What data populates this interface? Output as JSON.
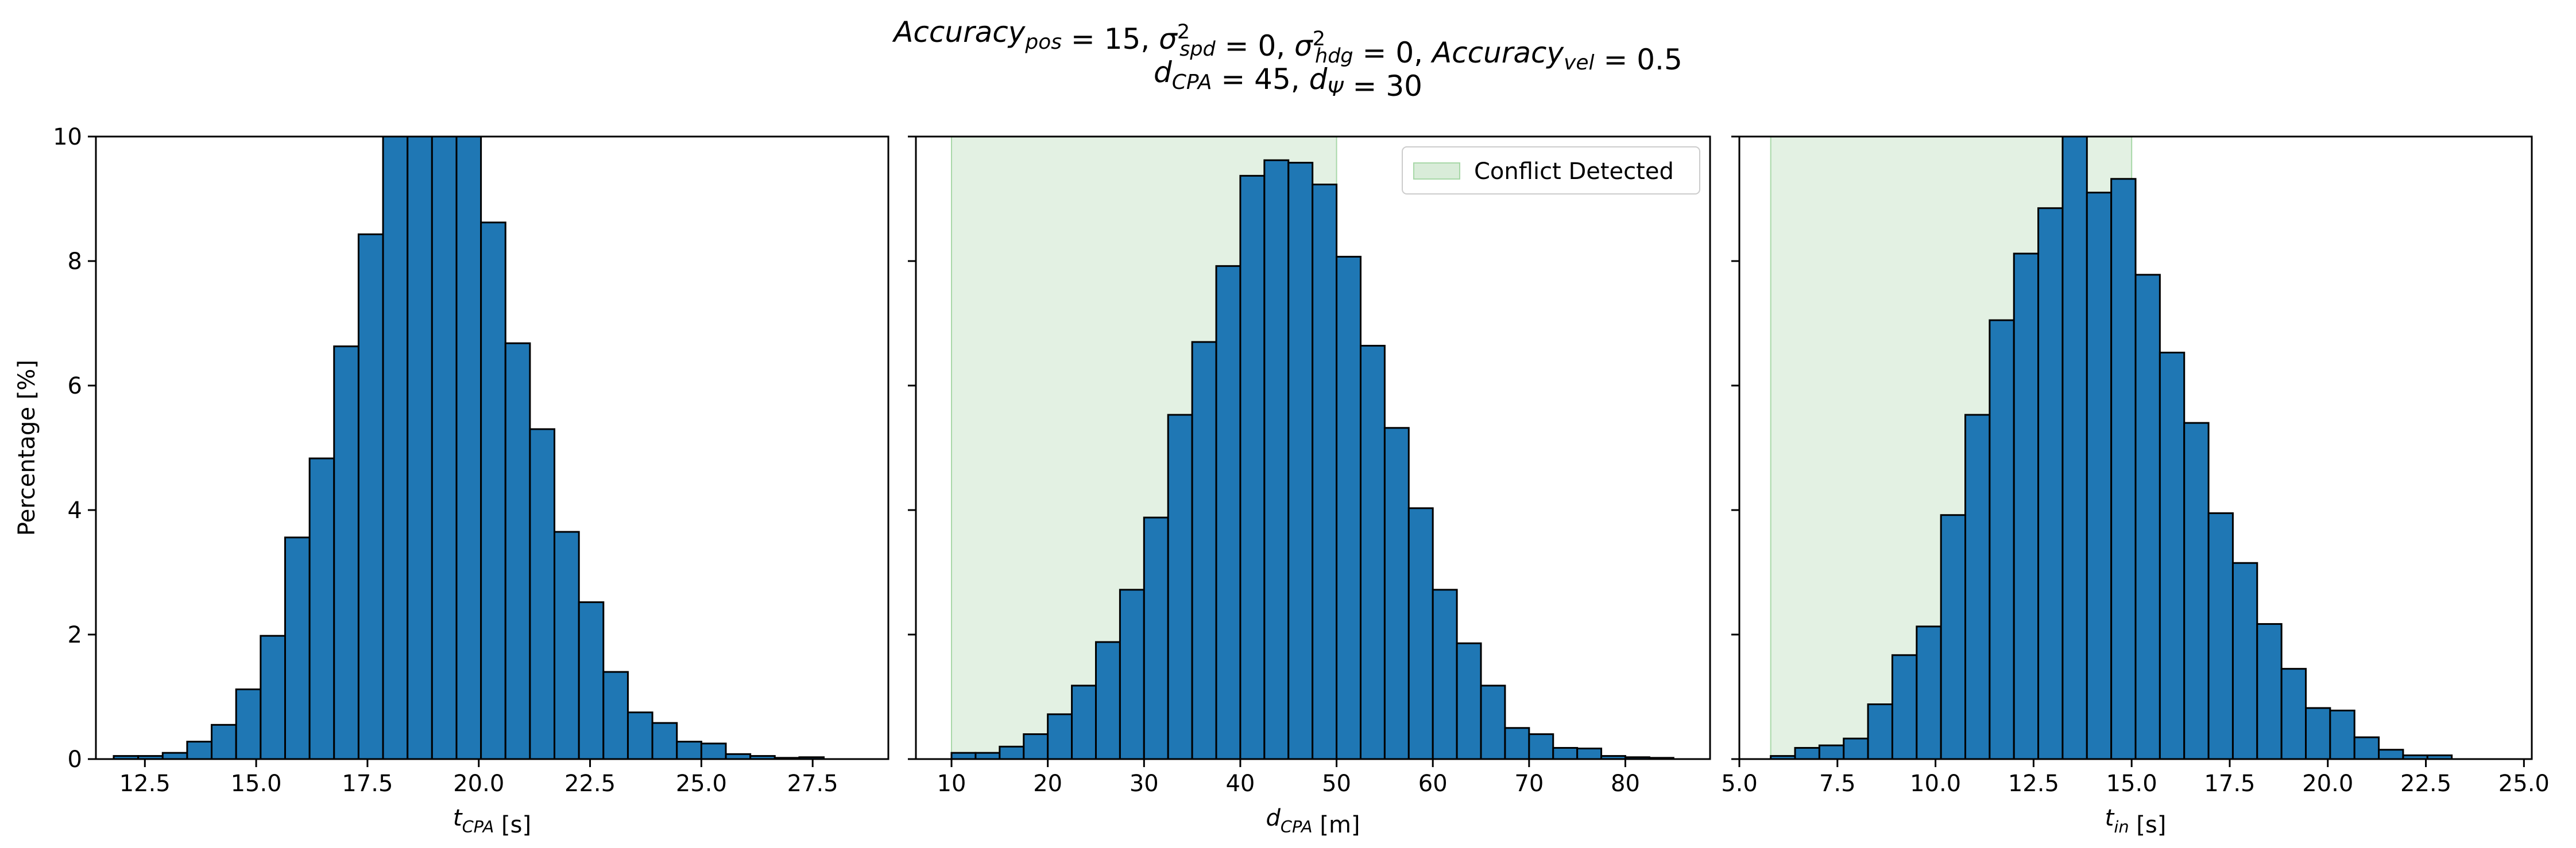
{
  "figure": {
    "title_line1": "Accuracy_pos = 15, σ²_spd = 0, σ²_hdg = 0, Accuracy_vel = 0.5",
    "title_line2": "d_CPA = 45, d_Ψ = 30"
  },
  "colors": {
    "bar_fill": "#1f77b4",
    "bar_edge": "#000000",
    "region_fill": "#d9ecd9",
    "region_edge": "#a8d8a8"
  },
  "chart_data": [
    {
      "type": "bar",
      "subtype": "histogram",
      "xlabel": "t_CPA [s]",
      "ylabel": "Percentage [%]",
      "xlim": [
        11.4,
        29.2
      ],
      "ylim": [
        0,
        10
      ],
      "xticks": [
        12.5,
        15.0,
        17.5,
        20.0,
        22.5,
        25.0,
        27.5
      ],
      "xtick_labels": [
        "12.5",
        "15.0",
        "17.5",
        "20.0",
        "22.5",
        "25.0",
        "27.5"
      ],
      "yticks": [
        0,
        2,
        4,
        6,
        8,
        10
      ],
      "ytick_labels": [
        "0",
        "2",
        "4",
        "6",
        "8",
        "10"
      ],
      "bin_edges": [
        11.8,
        12.35,
        12.9,
        13.45,
        14.0,
        14.55,
        15.1,
        15.65,
        16.2,
        16.75,
        17.3,
        17.85,
        18.4,
        18.95,
        19.5,
        20.05,
        20.6,
        21.15,
        21.7,
        22.25,
        22.8,
        23.35,
        23.9,
        24.45,
        25.0,
        25.55,
        26.1,
        26.65,
        27.2,
        27.75,
        28.3
      ],
      "values": [
        0.05,
        0.05,
        0.1,
        0.28,
        0.55,
        1.12,
        1.98,
        3.56,
        4.83,
        6.63,
        8.43,
        10.0,
        10.0,
        10.0,
        10.0,
        8.62,
        6.68,
        5.3,
        3.65,
        2.52,
        1.4,
        0.75,
        0.58,
        0.28,
        0.25,
        0.08,
        0.05,
        0.02,
        0.03,
        0.0
      ]
    },
    {
      "type": "bar",
      "subtype": "histogram",
      "xlabel": "d_CPA [m]",
      "ylabel": "",
      "xlim": [
        6.3,
        88.8
      ],
      "ylim": [
        0,
        10
      ],
      "xticks": [
        10,
        20,
        30,
        40,
        50,
        60,
        70,
        80
      ],
      "xtick_labels": [
        "10",
        "20",
        "30",
        "40",
        "50",
        "60",
        "70",
        "80"
      ],
      "yticks": [
        0,
        2,
        4,
        6,
        8,
        10
      ],
      "ytick_labels": [
        "",
        "",
        "",
        "",
        "",
        ""
      ],
      "bin_edges": [
        10.0,
        12.5,
        15.0,
        17.5,
        20.0,
        22.5,
        25.0,
        27.5,
        30.0,
        32.5,
        35.0,
        37.5,
        40.0,
        42.5,
        45.0,
        47.5,
        50.0,
        52.5,
        55.0,
        57.5,
        60.0,
        62.5,
        65.0,
        67.5,
        70.0,
        72.5,
        75.0,
        77.5,
        80.0,
        82.5,
        85.0
      ],
      "values": [
        0.1,
        0.1,
        0.2,
        0.4,
        0.72,
        1.18,
        1.88,
        2.72,
        3.88,
        5.53,
        6.7,
        7.92,
        9.37,
        9.62,
        9.58,
        9.23,
        8.07,
        6.64,
        5.32,
        4.03,
        2.72,
        1.86,
        1.18,
        0.5,
        0.4,
        0.18,
        0.17,
        0.05,
        0.03,
        0.02
      ],
      "shaded_region": {
        "x": [
          10,
          50
        ],
        "label": "Conflict Detected"
      },
      "legend": {
        "entries": [
          "Conflict Detected"
        ],
        "placement": "top-right"
      }
    },
    {
      "type": "bar",
      "subtype": "histogram",
      "xlabel": "t_in [s]",
      "ylabel": "",
      "xlim": [
        5.0,
        25.2
      ],
      "ylim": [
        0,
        10
      ],
      "xticks": [
        5.0,
        7.5,
        10.0,
        12.5,
        15.0,
        17.5,
        20.0,
        22.5,
        25.0
      ],
      "xtick_labels": [
        "5.0",
        "7.5",
        "10.0",
        "12.5",
        "15.0",
        "17.5",
        "20.0",
        "22.5",
        "25.0"
      ],
      "yticks": [
        0,
        2,
        4,
        6,
        8,
        10
      ],
      "ytick_labels": [
        "",
        "",
        "",
        "",
        "",
        ""
      ],
      "bin_edges": [
        5.8,
        6.42,
        7.04,
        7.66,
        8.28,
        8.9,
        9.52,
        10.14,
        10.76,
        11.38,
        12.0,
        12.62,
        13.24,
        13.86,
        14.48,
        15.1,
        15.72,
        16.34,
        16.96,
        17.58,
        18.2,
        18.82,
        19.44,
        20.06,
        20.68,
        21.3,
        21.92,
        22.54,
        23.16,
        23.78,
        24.4
      ],
      "values": [
        0.05,
        0.18,
        0.22,
        0.33,
        0.88,
        1.67,
        2.13,
        3.92,
        5.53,
        7.05,
        8.12,
        8.85,
        10.0,
        9.1,
        9.32,
        7.78,
        6.53,
        5.4,
        3.95,
        3.15,
        2.17,
        1.45,
        0.82,
        0.78,
        0.35,
        0.15,
        0.06,
        0.06,
        0.0,
        0.0
      ],
      "shaded_region": {
        "x": [
          5.8,
          15.0
        ]
      }
    }
  ]
}
